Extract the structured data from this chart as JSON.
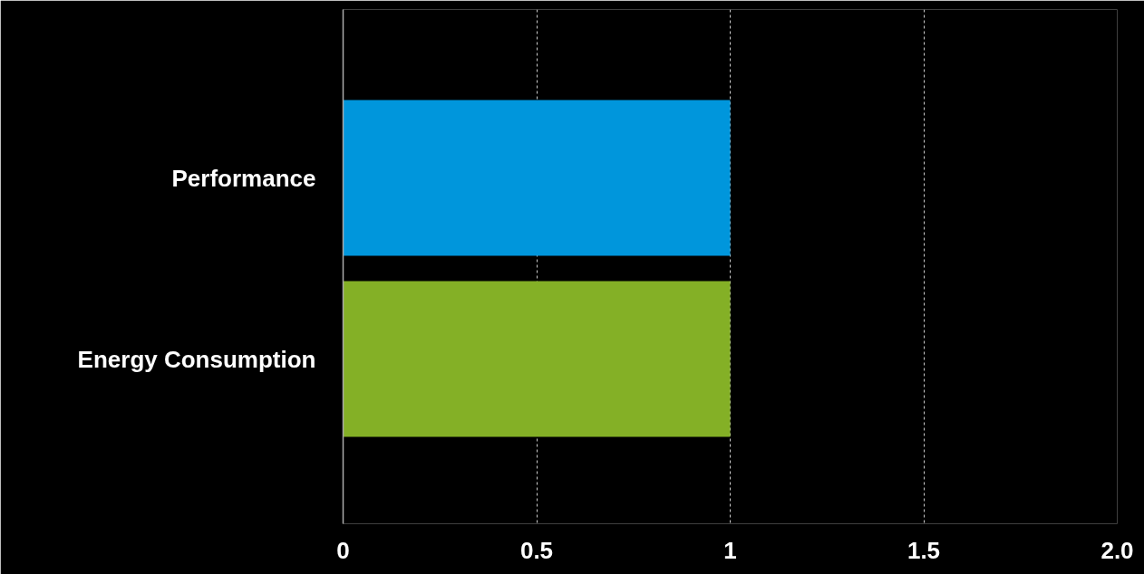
{
  "chart_data": {
    "type": "bar",
    "orientation": "horizontal",
    "categories": [
      "Performance",
      "Energy Consumption"
    ],
    "values": [
      1,
      1
    ],
    "colors": [
      "#0096dc",
      "#84b026"
    ],
    "xlim": [
      0,
      2
    ],
    "xticks": [
      0,
      0.5,
      1,
      1.5,
      {
        "value": 2,
        "label": "2.0"
      }
    ],
    "grid": "x"
  }
}
